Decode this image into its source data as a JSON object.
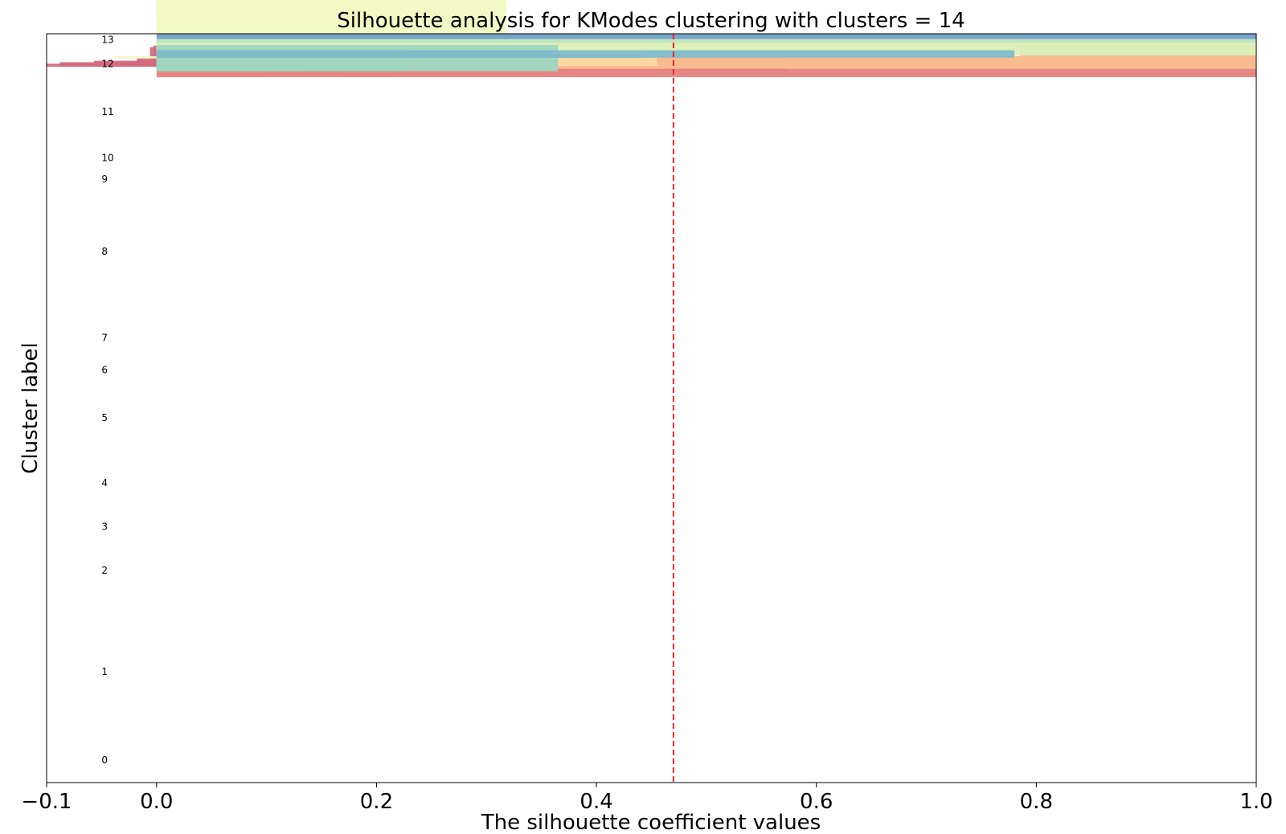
{
  "chart_data": {
    "type": "silhouette",
    "title": "Silhouette analysis for KModes clustering with clusters = 14",
    "xlabel": "The silhouette coefficient values",
    "ylabel": "Cluster label",
    "xlim": [
      -0.1,
      1.0
    ],
    "xticks": [
      -0.1,
      0.0,
      0.2,
      0.4,
      0.6,
      0.8,
      1.0
    ],
    "xtick_labels": [
      "−0.1",
      "0.0",
      "0.2",
      "0.4",
      "0.6",
      "0.8",
      "1.0"
    ],
    "ylim": [
      0,
      1000
    ],
    "average_silhouette": 0.47,
    "average_line_color": "#e8282d",
    "clusters": [
      {
        "label": "0",
        "color": "#b84b7c",
        "label_y": 30,
        "steps": [
          [
            951,
            954,
            0.2
          ],
          [
            951,
            957,
            0.245
          ],
          [
            951,
            962,
            0.255
          ],
          [
            951,
            966,
            0.343
          ],
          [
            951,
            977,
            0.574
          ]
        ]
      },
      {
        "label": "1",
        "color": "#d36a80",
        "label_y": 148,
        "steps": [
          [
            956,
            960,
            -0.1
          ],
          [
            956,
            962,
            -0.088
          ],
          [
            956,
            964,
            -0.057
          ],
          [
            956,
            967,
            -0.018
          ],
          [
            956,
            969,
            -0.005
          ],
          [
            956,
            973,
            0.02
          ],
          [
            956,
            978,
            0.0
          ],
          [
            956,
            982,
            -0.006
          ],
          [
            956,
            984,
            -0.003
          ],
          [
            956,
            990,
            0.0
          ],
          [
            956,
            996,
            0.001
          ],
          [
            956,
            1000,
            0.004
          ],
          [
            956,
            1005,
            0.01
          ],
          [
            956,
            1010,
            0.012
          ],
          [
            956,
            1015,
            0.014
          ],
          [
            956,
            1020,
            0.018
          ],
          [
            956,
            1025,
            0.028
          ],
          [
            956,
            1030,
            0.038
          ],
          [
            956,
            1035,
            0.068
          ],
          [
            956,
            1040,
            0.071
          ],
          [
            956,
            1044,
            0.087
          ],
          [
            956,
            1050,
            0.095
          ]
        ]
      },
      {
        "label": "2",
        "color": "#e7827e",
        "label_y": 283,
        "steps": [
          [
            942,
            1000,
            1.0
          ]
        ]
      },
      {
        "label": "3",
        "color": "#f39e80",
        "label_y": 342,
        "steps": [
          [
            996,
            1000,
            1.0
          ]
        ]
      },
      {
        "label": "4",
        "color": "#f9be8f",
        "label_y": 400,
        "steps": [
          [
            953,
            1000,
            1.0
          ]
        ]
      },
      {
        "label": "5",
        "color": "#fcd8a4",
        "label_y": 487,
        "steps": [
          [
            957,
            959,
            0.178
          ],
          [
            957,
            962,
            0.227
          ],
          [
            957,
            965,
            0.248
          ],
          [
            957,
            970,
            0.258
          ],
          [
            957,
            975,
            0.275
          ],
          [
            957,
            982,
            0.283
          ],
          [
            957,
            989,
            0.287
          ],
          [
            957,
            994,
            0.3
          ],
          [
            957,
            997,
            0.372
          ],
          [
            957,
            1000,
            0.455
          ]
        ]
      },
      {
        "label": "6",
        "color": "#fdeeb4",
        "label_y": 551,
        "steps": [
          [
            985,
            1000,
            1.0
          ]
        ]
      },
      {
        "label": "7",
        "color": "#fefdd4",
        "label_y": 594,
        "steps": [
          [
            970,
            972,
            0.553
          ],
          [
            970,
            975,
            0.565
          ],
          [
            970,
            978,
            0.595
          ],
          [
            970,
            981,
            0.685
          ],
          [
            970,
            985,
            0.785
          ]
        ]
      },
      {
        "label": "8",
        "color": "#f1f9c2",
        "label_y": 709,
        "steps": [
          [
            967,
            970,
            -0.038
          ],
          [
            967,
            972,
            0.033
          ],
          [
            967,
            975,
            0.045
          ],
          [
            967,
            978,
            0.065
          ],
          [
            967,
            982,
            0.066
          ],
          [
            967,
            985,
            0.066
          ],
          [
            967,
            990,
            0.07
          ],
          [
            967,
            995,
            0.085
          ],
          [
            967,
            1000,
            0.093
          ],
          [
            967,
            1005,
            0.101
          ],
          [
            967,
            1010,
            0.108
          ],
          [
            967,
            1015,
            0.112
          ],
          [
            967,
            1020,
            0.118
          ],
          [
            967,
            1025,
            0.123
          ],
          [
            967,
            1030,
            0.148
          ],
          [
            967,
            1035,
            0.155
          ],
          [
            967,
            1040,
            0.187
          ],
          [
            967,
            1045,
            0.2
          ],
          [
            967,
            1050,
            0.213
          ],
          [
            967,
            1055,
            0.225
          ],
          [
            967,
            1060,
            0.226
          ],
          [
            967,
            1065,
            0.318
          ]
        ]
      },
      {
        "label": "9",
        "color": "#daf0b9",
        "label_y": 806,
        "steps": [
          [
            971,
            1000,
            1.0
          ]
        ]
      },
      {
        "label": "10",
        "color": "#bfe5bf",
        "label_y": 834,
        "steps": [
          [
            988,
            1000,
            1.0
          ]
        ]
      },
      {
        "label": "11",
        "color": "#9ed6c0",
        "label_y": 896,
        "steps": [
          [
            950,
            952,
            0.051
          ],
          [
            950,
            955,
            0.083
          ],
          [
            950,
            958,
            0.108
          ],
          [
            950,
            960,
            0.132
          ],
          [
            950,
            963,
            0.163
          ],
          [
            950,
            966,
            0.186
          ],
          [
            950,
            970,
            0.218
          ],
          [
            950,
            975,
            0.221
          ],
          [
            950,
            980,
            0.226
          ],
          [
            950,
            985,
            0.365
          ]
        ]
      },
      {
        "label": "12",
        "color": "#80bbca",
        "label_y": 960,
        "steps": [
          [
            968,
            972,
            0.445
          ],
          [
            968,
            978,
            0.78
          ]
        ]
      },
      {
        "label": "13",
        "color": "#75a0cb",
        "label_y": 992,
        "steps": [
          [
            993,
            1000,
            1.0
          ]
        ]
      }
    ]
  }
}
